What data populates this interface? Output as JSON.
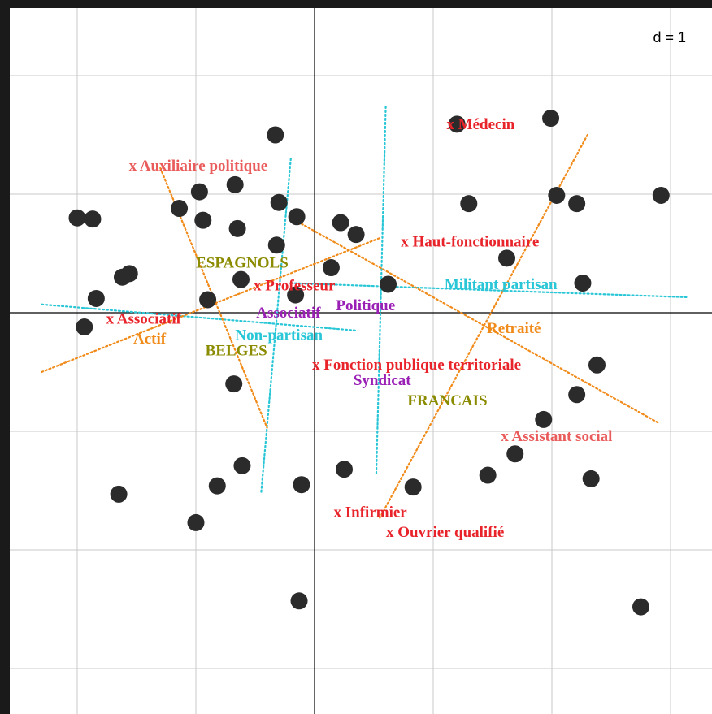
{
  "chart_data": {
    "type": "scatter",
    "title": "",
    "xlabel": "",
    "ylabel": "",
    "scale_label": "d = 1",
    "grid": true,
    "xlim": [
      -2.6,
      3.4
    ],
    "ylim": [
      -3.3,
      2.6
    ],
    "axes_at_origin": true,
    "colors": {
      "occupation": "#e8232a",
      "occupation_light": "#ea5b5b",
      "nationality": "#8b8b00",
      "engagement": "#9a1fb5",
      "partisanship": "#28c6d6",
      "activity": "#f08a18",
      "individual": "#2b2b2b",
      "axis": "#000000",
      "grid": "#c8c8c8",
      "frame": "#1a1a1a"
    },
    "individuals": [
      {
        "x": -2.0,
        "y": 0.8
      },
      {
        "x": -1.84,
        "y": 0.12
      },
      {
        "x": -1.56,
        "y": 0.33
      },
      {
        "x": -1.62,
        "y": 0.3
      },
      {
        "x": -1.87,
        "y": 0.79
      },
      {
        "x": -1.94,
        "y": -0.12
      },
      {
        "x": -1.14,
        "y": 0.88
      },
      {
        "x": -0.97,
        "y": 1.02
      },
      {
        "x": -0.94,
        "y": 0.78
      },
      {
        "x": -0.65,
        "y": 0.71
      },
      {
        "x": -0.62,
        "y": 0.28
      },
      {
        "x": -0.32,
        "y": 0.57
      },
      {
        "x": -0.33,
        "y": 1.5
      },
      {
        "x": -0.3,
        "y": 0.93
      },
      {
        "x": -0.15,
        "y": 0.81
      },
      {
        "x": -0.16,
        "y": 0.15
      },
      {
        "x": 0.14,
        "y": 0.38
      },
      {
        "x": 0.22,
        "y": 0.76
      },
      {
        "x": 0.35,
        "y": 0.66
      },
      {
        "x": 0.62,
        "y": 0.24
      },
      {
        "x": 1.2,
        "y": 1.59
      },
      {
        "x": 1.3,
        "y": 0.92
      },
      {
        "x": 1.62,
        "y": 0.46
      },
      {
        "x": 1.99,
        "y": 1.64
      },
      {
        "x": 2.04,
        "y": 0.99
      },
      {
        "x": 2.21,
        "y": 0.92
      },
      {
        "x": 2.26,
        "y": 0.25
      },
      {
        "x": 2.92,
        "y": 0.99
      },
      {
        "x": -0.68,
        "y": -0.6
      },
      {
        "x": -0.67,
        "y": 1.08
      },
      {
        "x": -1.65,
        "y": -1.53
      },
      {
        "x": -0.82,
        "y": -1.46
      },
      {
        "x": -0.61,
        "y": -1.29
      },
      {
        "x": -1.0,
        "y": -1.77
      },
      {
        "x": -0.11,
        "y": -1.45
      },
      {
        "x": 0.25,
        "y": -1.32
      },
      {
        "x": 0.83,
        "y": -1.47
      },
      {
        "x": 1.46,
        "y": -1.37
      },
      {
        "x": 1.69,
        "y": -1.19
      },
      {
        "x": 1.93,
        "y": -0.9
      },
      {
        "x": 2.21,
        "y": -0.69
      },
      {
        "x": 2.38,
        "y": -0.44
      },
      {
        "x": 2.33,
        "y": -1.4
      },
      {
        "x": -0.13,
        "y": -2.43
      },
      {
        "x": 2.75,
        "y": -2.48
      },
      {
        "x": -0.9,
        "y": 0.11
      }
    ],
    "occupation_labels": [
      {
        "text": "x Médecin",
        "x": 1.4,
        "y": 1.59,
        "shade": "dark"
      },
      {
        "text": "x Auxiliaire politique",
        "x": -0.98,
        "y": 1.24,
        "shade": "light"
      },
      {
        "text": "x Haut-fonctionnaire",
        "x": 1.31,
        "y": 0.6,
        "shade": "dark"
      },
      {
        "text": "x Professeur",
        "x": -0.17,
        "y": 0.23,
        "shade": "dark"
      },
      {
        "text": "x Associatif",
        "x": -1.44,
        "y": -0.05,
        "shade": "dark"
      },
      {
        "text": "x Fonction publique territoriale",
        "x": 0.86,
        "y": -0.44,
        "shade": "dark"
      },
      {
        "text": "x Assistant social",
        "x": 2.04,
        "y": -1.04,
        "shade": "light"
      },
      {
        "text": "x Infirmier",
        "x": 0.47,
        "y": -1.68,
        "shade": "dark"
      },
      {
        "text": "x Ouvrier qualifié",
        "x": 1.1,
        "y": -1.85,
        "shade": "dark"
      }
    ],
    "nationality_labels": [
      {
        "text": "ESPAGNOLS",
        "x": -0.61,
        "y": 0.42
      },
      {
        "text": "BELGES",
        "x": -0.66,
        "y": -0.32
      },
      {
        "text": "FRANCAIS",
        "x": 1.12,
        "y": -0.74
      }
    ],
    "engagement_labels": [
      {
        "text": "Politique",
        "x": 0.43,
        "y": 0.06
      },
      {
        "text": "Associatif",
        "x": -0.22,
        "y": 0.0
      },
      {
        "text": "Syndicat",
        "x": 0.57,
        "y": -0.57
      }
    ],
    "partisanship_labels": [
      {
        "text": "Militant partisan",
        "x": 1.57,
        "y": 0.24
      },
      {
        "text": "Non-partisan",
        "x": -0.3,
        "y": -0.19
      }
    ],
    "activity_labels": [
      {
        "text": "Retraité",
        "x": 1.68,
        "y": -0.13
      },
      {
        "text": "Actif",
        "x": -1.39,
        "y": -0.22
      }
    ],
    "dotted_segments": [
      {
        "group": "partisanship",
        "from": [
          -2.3,
          0.07
        ],
        "to": [
          0.35,
          -0.15
        ]
      },
      {
        "group": "partisanship",
        "from": [
          -0.2,
          0.25
        ],
        "to": [
          3.15,
          0.13
        ]
      },
      {
        "group": "partisanship",
        "from": [
          -0.2,
          1.3
        ],
        "to": [
          -0.45,
          -1.52
        ]
      },
      {
        "group": "partisanship",
        "from": [
          0.6,
          1.74
        ],
        "to": [
          0.52,
          -1.37
        ]
      },
      {
        "group": "activity",
        "from": [
          -1.3,
          1.22
        ],
        "to": [
          -0.4,
          -0.97
        ]
      },
      {
        "group": "activity",
        "from": [
          -2.3,
          -0.5
        ],
        "to": [
          0.55,
          0.63
        ]
      },
      {
        "group": "activity",
        "from": [
          -0.2,
          0.8
        ],
        "to": [
          2.9,
          -0.93
        ]
      },
      {
        "group": "activity",
        "from": [
          2.3,
          1.5
        ],
        "to": [
          0.55,
          -1.73
        ]
      }
    ]
  }
}
